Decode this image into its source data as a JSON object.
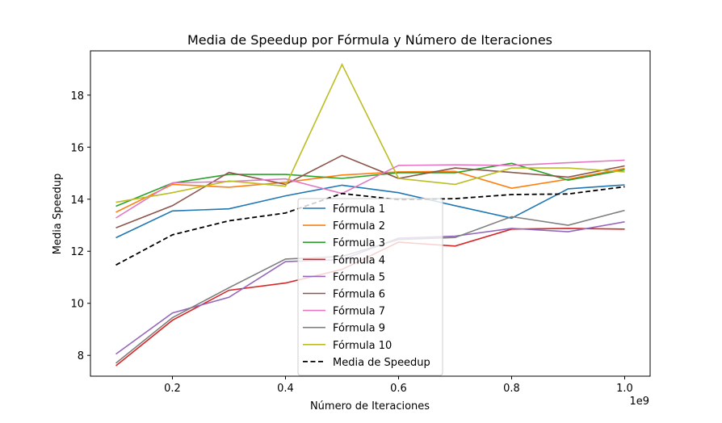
{
  "chart_data": {
    "type": "line",
    "title": "Media de Speedup por Fórmula y Número de Iteraciones",
    "xlabel": "Número de Iteraciones",
    "ylabel": "Media Speedup",
    "x_offset_label": "1e9",
    "x": [
      0.1,
      0.2,
      0.3,
      0.4,
      0.5,
      0.6,
      0.7,
      0.8,
      0.9,
      1.0
    ],
    "xticks": [
      "0.2",
      "0.4",
      "0.6",
      "0.8",
      "1.0"
    ],
    "xtick_values": [
      0.2,
      0.4,
      0.6,
      0.8,
      1.0
    ],
    "yticks": [
      "8",
      "10",
      "12",
      "14",
      "16",
      "18"
    ],
    "ytick_values": [
      8,
      10,
      12,
      14,
      16,
      18
    ],
    "xlim": [
      0.055,
      1.045
    ],
    "ylim": [
      7.2,
      19.7
    ],
    "grid": false,
    "legend_position": "lower-center",
    "series": [
      {
        "name": "Fórmula 1",
        "color": "#1f77b4",
        "dashed": false,
        "values": [
          12.52,
          13.55,
          13.63,
          14.13,
          14.54,
          14.25,
          13.75,
          13.27,
          14.4,
          14.55
        ]
      },
      {
        "name": "Fórmula 2",
        "color": "#ff7f0e",
        "dashed": false,
        "values": [
          13.5,
          14.57,
          14.46,
          14.65,
          14.93,
          15.05,
          15.07,
          14.42,
          14.77,
          15.18
        ]
      },
      {
        "name": "Fórmula 3",
        "color": "#2ca02c",
        "dashed": false,
        "values": [
          13.73,
          14.62,
          14.95,
          14.95,
          14.8,
          15.02,
          15.02,
          15.38,
          14.73,
          15.13
        ]
      },
      {
        "name": "Fórmula 4",
        "color": "#d62728",
        "dashed": false,
        "values": [
          7.6,
          9.35,
          10.5,
          10.78,
          11.3,
          12.35,
          12.2,
          12.85,
          12.88,
          12.85
        ]
      },
      {
        "name": "Fórmula 5",
        "color": "#9467bd",
        "dashed": false,
        "values": [
          8.05,
          9.63,
          10.23,
          11.6,
          11.68,
          12.5,
          12.58,
          12.88,
          12.75,
          13.13
        ]
      },
      {
        "name": "Fórmula 6",
        "color": "#8c564b",
        "dashed": false,
        "values": [
          12.9,
          13.75,
          15.03,
          14.57,
          15.68,
          14.8,
          15.2,
          15.03,
          14.85,
          15.28
        ]
      },
      {
        "name": "Fórmula 7",
        "color": "#e377c2",
        "dashed": false,
        "values": [
          13.28,
          14.63,
          14.68,
          14.78,
          14.22,
          15.3,
          15.32,
          15.3,
          15.4,
          15.5
        ]
      },
      {
        "name": "Fórmula 9",
        "color": "#7f7f7f",
        "dashed": false,
        "values": [
          7.7,
          9.45,
          10.6,
          11.7,
          11.8,
          12.45,
          12.53,
          13.33,
          13.0,
          13.57
        ]
      },
      {
        "name": "Fórmula 10",
        "color": "#bcbd22",
        "dashed": false,
        "values": [
          13.88,
          14.25,
          14.7,
          14.5,
          19.18,
          14.8,
          14.57,
          15.2,
          15.2,
          15.05
        ]
      },
      {
        "name": "Media de Speedup",
        "color": "#000000",
        "dashed": true,
        "values": [
          11.47,
          12.63,
          13.17,
          13.47,
          14.22,
          13.98,
          14.02,
          14.18,
          14.2,
          14.48
        ]
      }
    ]
  }
}
